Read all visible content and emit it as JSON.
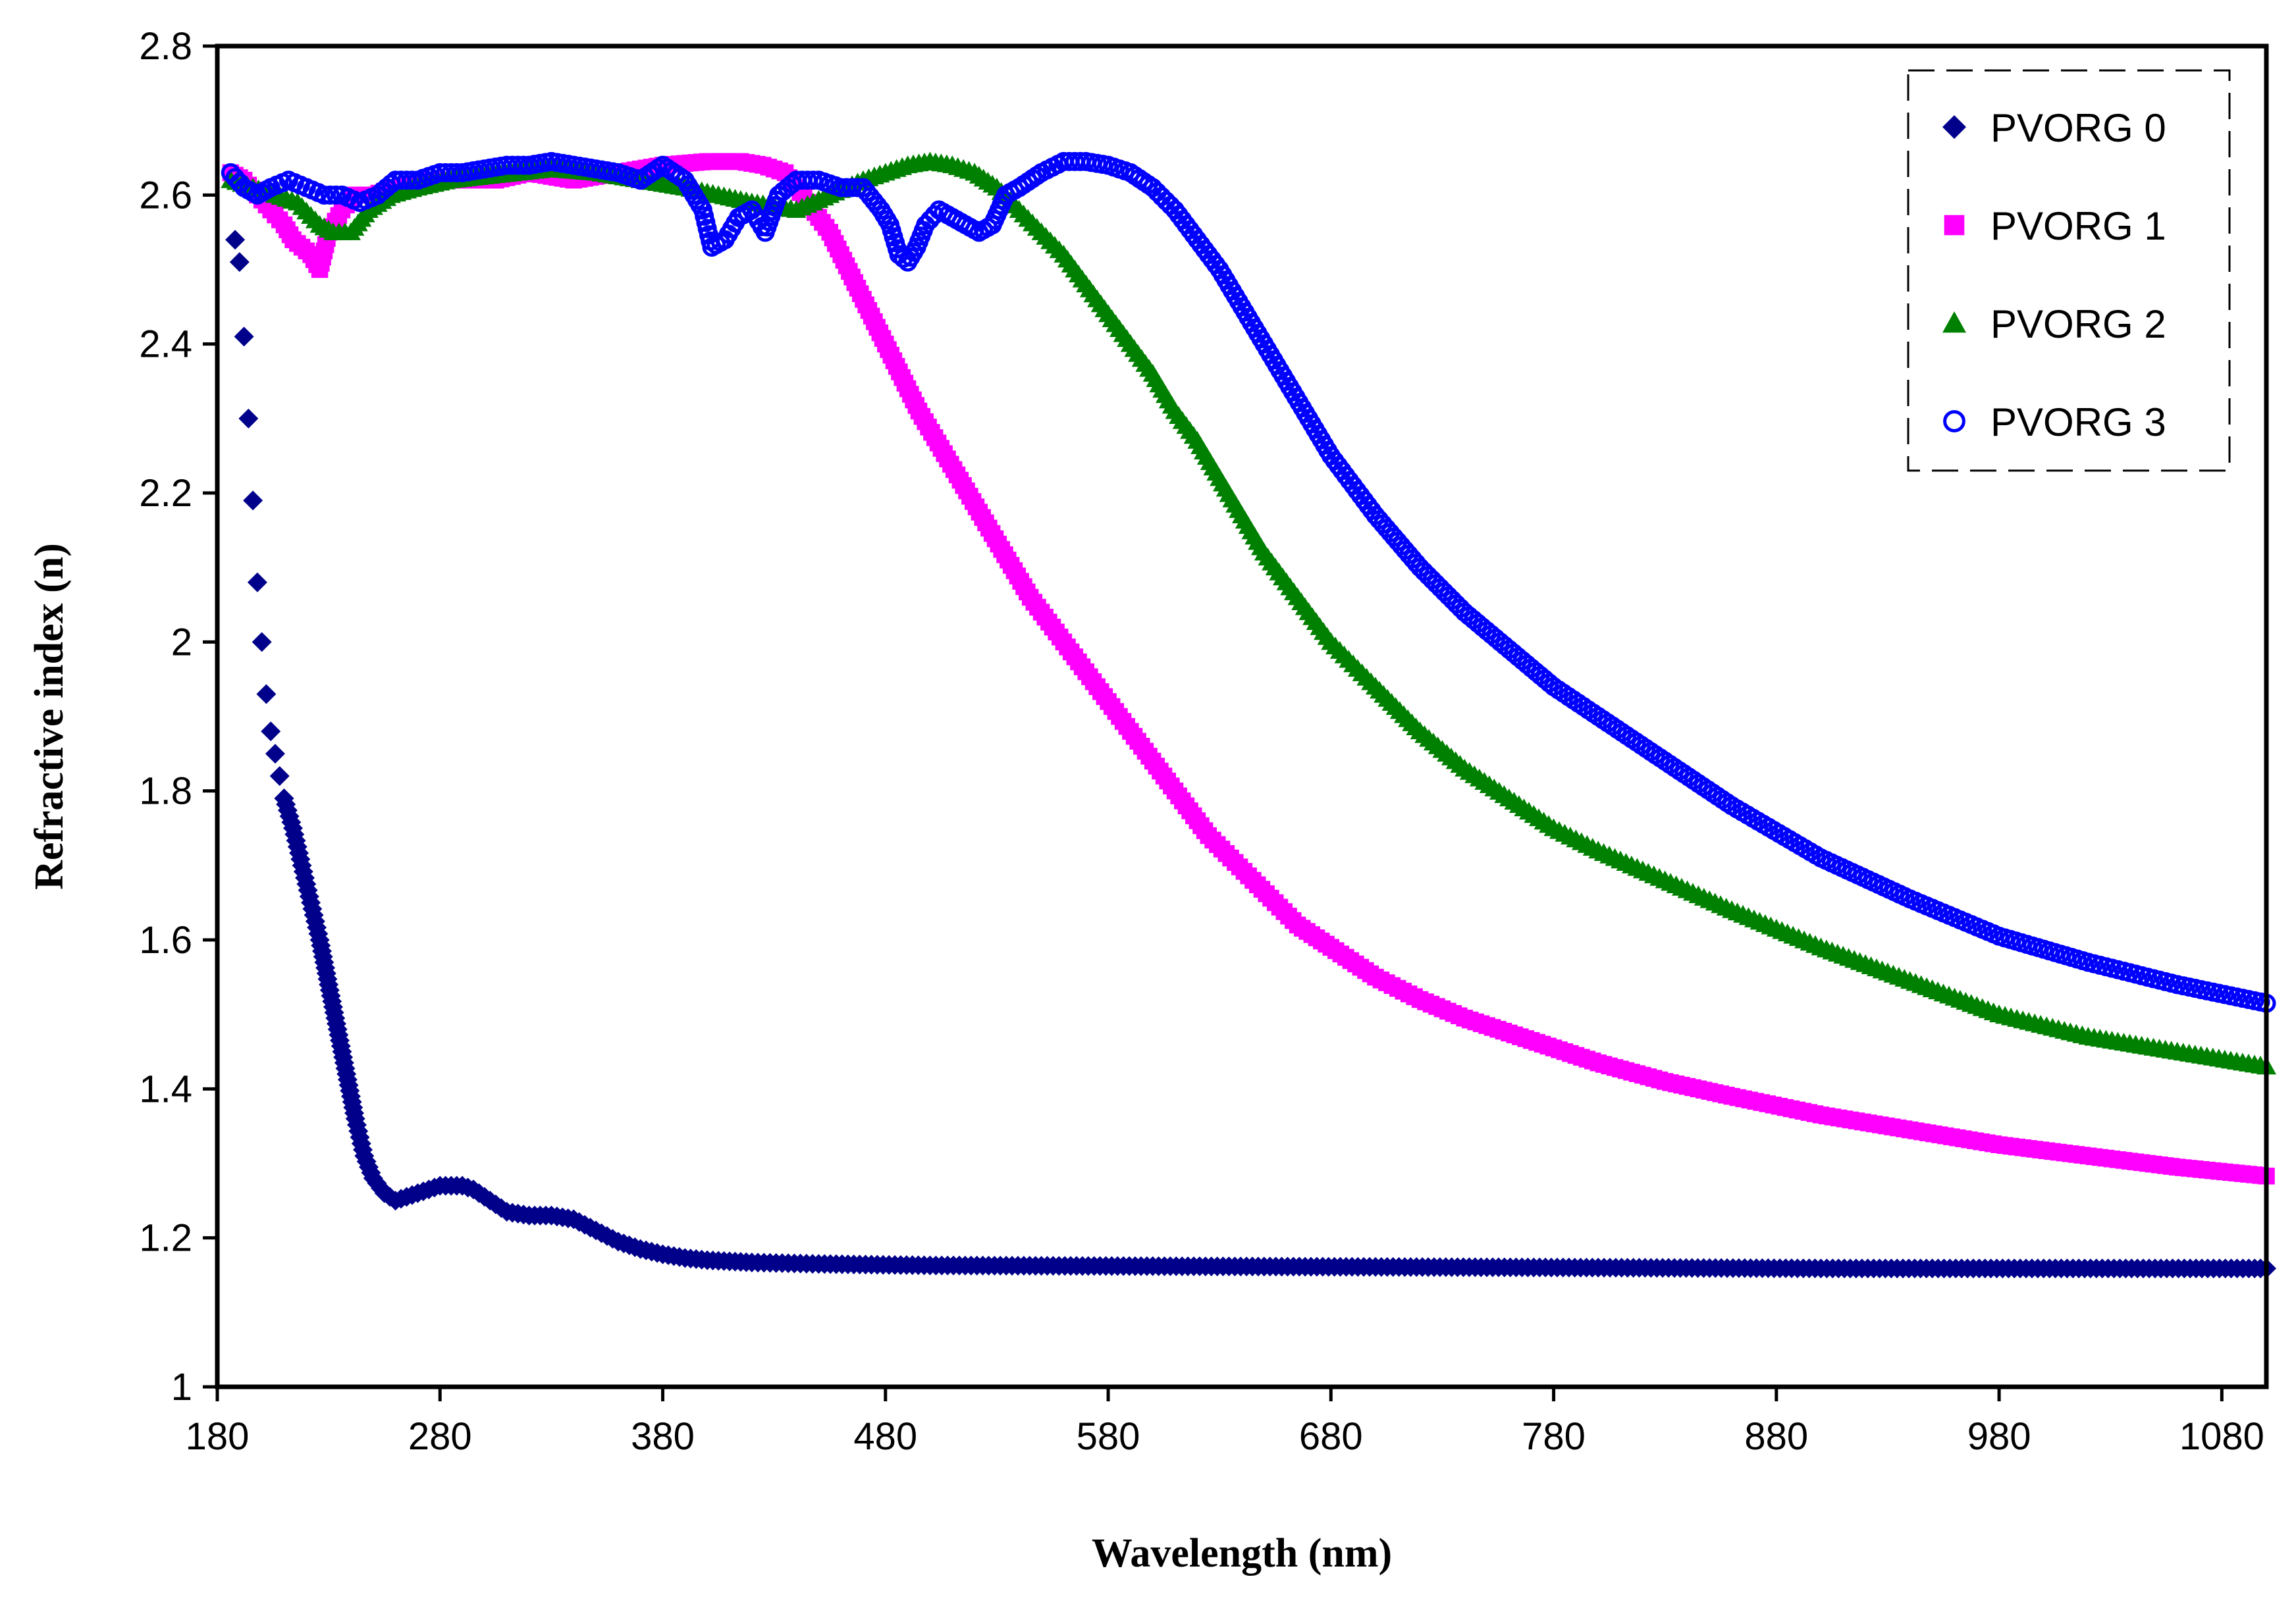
{
  "chart_data": {
    "type": "scatter",
    "title": "",
    "xlabel": "Wavelength (nm)",
    "ylabel": "Refractive index (n)",
    "xlim": [
      180,
      1100
    ],
    "ylim": [
      1,
      2.8
    ],
    "xticks": [
      180,
      280,
      380,
      480,
      580,
      680,
      780,
      880,
      980,
      1080
    ],
    "yticks": [
      1,
      1.2,
      1.4,
      1.6,
      1.8,
      2,
      2.2,
      2.4,
      2.6,
      2.8
    ],
    "ytick_labels": [
      "1",
      "1.2",
      "1.4",
      "1.6",
      "1.8",
      "2",
      "2.2",
      "2.4",
      "2.6",
      "2.8"
    ],
    "grid": false,
    "legend_position": "top-right",
    "series": [
      {
        "name": "PVORG 0",
        "color": "#00008B",
        "marker": "diamond",
        "points": [
          [
            188,
            2.54
          ],
          [
            190,
            2.51
          ],
          [
            192,
            2.41
          ],
          [
            194,
            2.3
          ],
          [
            196,
            2.19
          ],
          [
            198,
            2.08
          ],
          [
            200,
            2.0
          ],
          [
            202,
            1.93
          ],
          [
            204,
            1.88
          ],
          [
            206,
            1.85
          ],
          [
            208,
            1.82
          ],
          [
            210,
            1.79
          ],
          [
            214,
            1.75
          ],
          [
            218,
            1.7
          ],
          [
            222,
            1.65
          ],
          [
            226,
            1.6
          ],
          [
            230,
            1.54
          ],
          [
            234,
            1.48
          ],
          [
            238,
            1.42
          ],
          [
            242,
            1.36
          ],
          [
            246,
            1.31
          ],
          [
            250,
            1.28
          ],
          [
            255,
            1.26
          ],
          [
            260,
            1.25
          ],
          [
            265,
            1.255
          ],
          [
            270,
            1.26
          ],
          [
            275,
            1.265
          ],
          [
            280,
            1.27
          ],
          [
            285,
            1.27
          ],
          [
            290,
            1.27
          ],
          [
            295,
            1.265
          ],
          [
            300,
            1.255
          ],
          [
            305,
            1.245
          ],
          [
            310,
            1.235
          ],
          [
            320,
            1.23
          ],
          [
            330,
            1.23
          ],
          [
            340,
            1.225
          ],
          [
            350,
            1.21
          ],
          [
            360,
            1.195
          ],
          [
            370,
            1.185
          ],
          [
            380,
            1.178
          ],
          [
            390,
            1.173
          ],
          [
            400,
            1.17
          ],
          [
            420,
            1.167
          ],
          [
            450,
            1.165
          ],
          [
            500,
            1.163
          ],
          [
            600,
            1.162
          ],
          [
            700,
            1.161
          ],
          [
            800,
            1.16
          ],
          [
            900,
            1.159
          ],
          [
            1000,
            1.159
          ],
          [
            1100,
            1.159
          ]
        ]
      },
      {
        "name": "PVORG 1",
        "color": "#FF00FF",
        "marker": "square",
        "points": [
          [
            186,
            2.63
          ],
          [
            192,
            2.62
          ],
          [
            198,
            2.6
          ],
          [
            204,
            2.58
          ],
          [
            210,
            2.56
          ],
          [
            214,
            2.54
          ],
          [
            218,
            2.53
          ],
          [
            222,
            2.52
          ],
          [
            226,
            2.5
          ],
          [
            230,
            2.55
          ],
          [
            236,
            2.58
          ],
          [
            242,
            2.6
          ],
          [
            250,
            2.6
          ],
          [
            260,
            2.61
          ],
          [
            275,
            2.62
          ],
          [
            290,
            2.62
          ],
          [
            305,
            2.62
          ],
          [
            320,
            2.63
          ],
          [
            340,
            2.62
          ],
          [
            360,
            2.63
          ],
          [
            380,
            2.64
          ],
          [
            400,
            2.645
          ],
          [
            415,
            2.645
          ],
          [
            425,
            2.64
          ],
          [
            435,
            2.63
          ],
          [
            445,
            2.59
          ],
          [
            455,
            2.55
          ],
          [
            465,
            2.49
          ],
          [
            475,
            2.43
          ],
          [
            485,
            2.37
          ],
          [
            495,
            2.31
          ],
          [
            505,
            2.26
          ],
          [
            515,
            2.21
          ],
          [
            525,
            2.16
          ],
          [
            535,
            2.11
          ],
          [
            545,
            2.06
          ],
          [
            555,
            2.02
          ],
          [
            565,
            1.98
          ],
          [
            575,
            1.94
          ],
          [
            585,
            1.9
          ],
          [
            595,
            1.86
          ],
          [
            605,
            1.82
          ],
          [
            615,
            1.78
          ],
          [
            625,
            1.74
          ],
          [
            635,
            1.71
          ],
          [
            645,
            1.68
          ],
          [
            655,
            1.65
          ],
          [
            665,
            1.62
          ],
          [
            680,
            1.59
          ],
          [
            700,
            1.55
          ],
          [
            720,
            1.52
          ],
          [
            740,
            1.495
          ],
          [
            760,
            1.475
          ],
          [
            780,
            1.455
          ],
          [
            800,
            1.435
          ],
          [
            830,
            1.41
          ],
          [
            860,
            1.39
          ],
          [
            900,
            1.365
          ],
          [
            940,
            1.345
          ],
          [
            980,
            1.325
          ],
          [
            1020,
            1.31
          ],
          [
            1060,
            1.295
          ],
          [
            1100,
            1.283
          ]
        ]
      },
      {
        "name": "PVORG 2",
        "color": "#008000",
        "marker": "triangle",
        "points": [
          [
            186,
            2.62
          ],
          [
            196,
            2.61
          ],
          [
            206,
            2.6
          ],
          [
            216,
            2.59
          ],
          [
            226,
            2.56
          ],
          [
            232,
            2.55
          ],
          [
            240,
            2.55
          ],
          [
            248,
            2.58
          ],
          [
            258,
            2.6
          ],
          [
            270,
            2.61
          ],
          [
            285,
            2.62
          ],
          [
            300,
            2.625
          ],
          [
            315,
            2.63
          ],
          [
            330,
            2.635
          ],
          [
            350,
            2.63
          ],
          [
            370,
            2.62
          ],
          [
            390,
            2.61
          ],
          [
            405,
            2.6
          ],
          [
            420,
            2.59
          ],
          [
            440,
            2.58
          ],
          [
            455,
            2.6
          ],
          [
            470,
            2.62
          ],
          [
            480,
            2.63
          ],
          [
            490,
            2.64
          ],
          [
            500,
            2.645
          ],
          [
            510,
            2.64
          ],
          [
            520,
            2.63
          ],
          [
            530,
            2.61
          ],
          [
            540,
            2.58
          ],
          [
            550,
            2.55
          ],
          [
            560,
            2.52
          ],
          [
            570,
            2.48
          ],
          [
            580,
            2.44
          ],
          [
            590,
            2.4
          ],
          [
            600,
            2.36
          ],
          [
            610,
            2.31
          ],
          [
            620,
            2.27
          ],
          [
            630,
            2.22
          ],
          [
            640,
            2.17
          ],
          [
            650,
            2.12
          ],
          [
            660,
            2.08
          ],
          [
            670,
            2.04
          ],
          [
            680,
            2.0
          ],
          [
            690,
            1.97
          ],
          [
            700,
            1.94
          ],
          [
            720,
            1.88
          ],
          [
            740,
            1.83
          ],
          [
            760,
            1.79
          ],
          [
            780,
            1.75
          ],
          [
            800,
            1.72
          ],
          [
            830,
            1.68
          ],
          [
            860,
            1.64
          ],
          [
            900,
            1.59
          ],
          [
            940,
            1.545
          ],
          [
            980,
            1.5
          ],
          [
            1020,
            1.47
          ],
          [
            1060,
            1.45
          ],
          [
            1100,
            1.43
          ]
        ]
      },
      {
        "name": "PVORG 3",
        "color": "#0000FF",
        "marker": "circle",
        "points": [
          [
            186,
            2.63
          ],
          [
            192,
            2.61
          ],
          [
            198,
            2.6
          ],
          [
            204,
            2.61
          ],
          [
            212,
            2.62
          ],
          [
            220,
            2.61
          ],
          [
            228,
            2.6
          ],
          [
            236,
            2.6
          ],
          [
            244,
            2.59
          ],
          [
            252,
            2.6
          ],
          [
            260,
            2.62
          ],
          [
            270,
            2.62
          ],
          [
            280,
            2.63
          ],
          [
            290,
            2.63
          ],
          [
            300,
            2.635
          ],
          [
            310,
            2.64
          ],
          [
            320,
            2.64
          ],
          [
            330,
            2.645
          ],
          [
            340,
            2.64
          ],
          [
            350,
            2.635
          ],
          [
            360,
            2.63
          ],
          [
            370,
            2.62
          ],
          [
            380,
            2.64
          ],
          [
            390,
            2.62
          ],
          [
            398,
            2.58
          ],
          [
            402,
            2.53
          ],
          [
            408,
            2.54
          ],
          [
            414,
            2.57
          ],
          [
            420,
            2.58
          ],
          [
            426,
            2.55
          ],
          [
            432,
            2.6
          ],
          [
            440,
            2.62
          ],
          [
            450,
            2.62
          ],
          [
            460,
            2.61
          ],
          [
            470,
            2.61
          ],
          [
            478,
            2.58
          ],
          [
            482,
            2.56
          ],
          [
            486,
            2.52
          ],
          [
            490,
            2.51
          ],
          [
            494,
            2.53
          ],
          [
            498,
            2.56
          ],
          [
            504,
            2.58
          ],
          [
            510,
            2.57
          ],
          [
            516,
            2.56
          ],
          [
            522,
            2.55
          ],
          [
            528,
            2.56
          ],
          [
            534,
            2.6
          ],
          [
            540,
            2.61
          ],
          [
            550,
            2.63
          ],
          [
            560,
            2.645
          ],
          [
            570,
            2.645
          ],
          [
            580,
            2.64
          ],
          [
            590,
            2.63
          ],
          [
            600,
            2.61
          ],
          [
            610,
            2.58
          ],
          [
            620,
            2.54
          ],
          [
            630,
            2.5
          ],
          [
            640,
            2.45
          ],
          [
            650,
            2.4
          ],
          [
            660,
            2.35
          ],
          [
            670,
            2.3
          ],
          [
            680,
            2.25
          ],
          [
            690,
            2.21
          ],
          [
            700,
            2.17
          ],
          [
            720,
            2.1
          ],
          [
            740,
            2.04
          ],
          [
            760,
            1.99
          ],
          [
            780,
            1.94
          ],
          [
            800,
            1.9
          ],
          [
            830,
            1.84
          ],
          [
            860,
            1.78
          ],
          [
            900,
            1.71
          ],
          [
            940,
            1.655
          ],
          [
            980,
            1.605
          ],
          [
            1020,
            1.57
          ],
          [
            1060,
            1.54
          ],
          [
            1100,
            1.515
          ]
        ]
      }
    ]
  }
}
